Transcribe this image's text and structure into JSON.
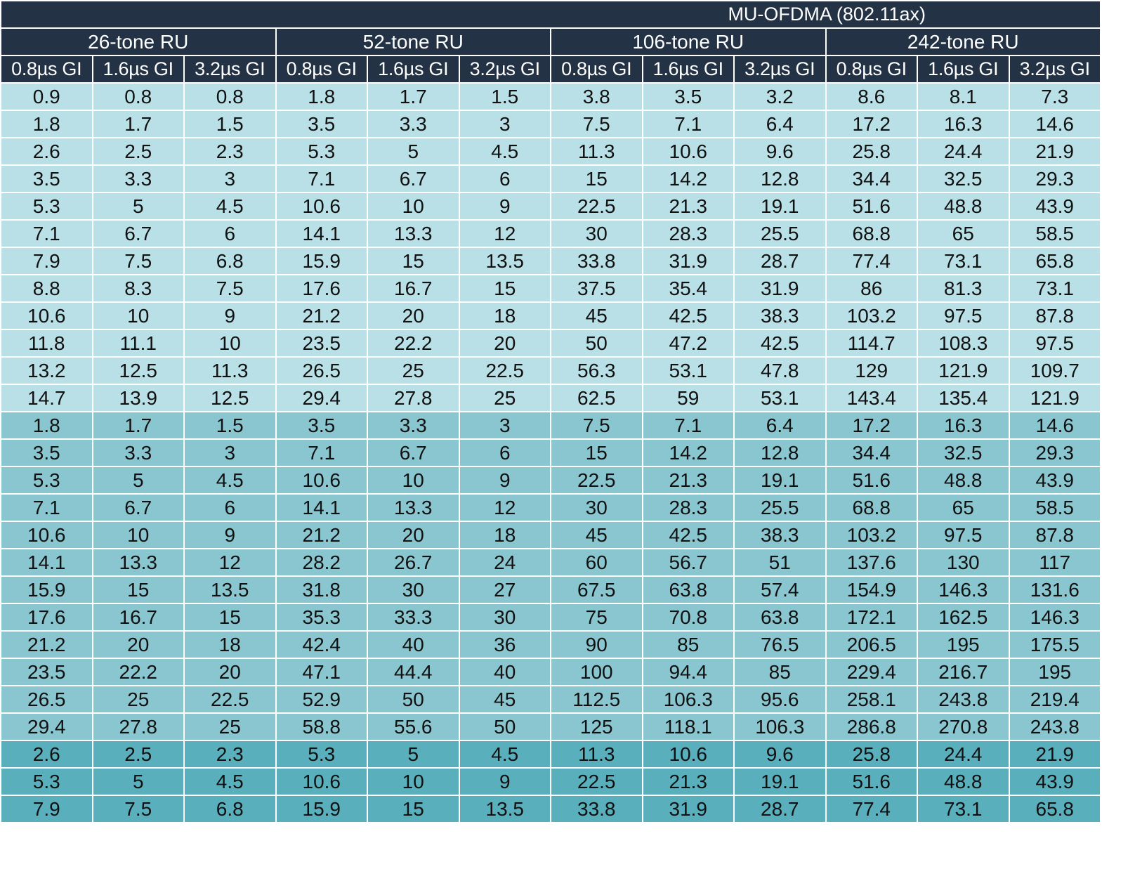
{
  "table": {
    "title": "MU-OFDMA (802.11ax)",
    "ru_headers": [
      "26-tone RU",
      "52-tone RU",
      "106-tone RU",
      "242-tone RU"
    ],
    "gi_headers": [
      "0.8µs GI",
      "1.6µs GI",
      "3.2µs GI"
    ],
    "band_colors": {
      "header": "#243246",
      "band_1": "#b8e0e6",
      "band_2": "#89c6cf",
      "band_3": "#5aafbd"
    },
    "rows": [
      {
        "band": 1,
        "cells": [
          "0.9",
          "0.8",
          "0.8",
          "1.8",
          "1.7",
          "1.5",
          "3.8",
          "3.5",
          "3.2",
          "8.6",
          "8.1",
          "7.3"
        ]
      },
      {
        "band": 1,
        "cells": [
          "1.8",
          "1.7",
          "1.5",
          "3.5",
          "3.3",
          "3",
          "7.5",
          "7.1",
          "6.4",
          "17.2",
          "16.3",
          "14.6"
        ]
      },
      {
        "band": 1,
        "cells": [
          "2.6",
          "2.5",
          "2.3",
          "5.3",
          "5",
          "4.5",
          "11.3",
          "10.6",
          "9.6",
          "25.8",
          "24.4",
          "21.9"
        ]
      },
      {
        "band": 1,
        "cells": [
          "3.5",
          "3.3",
          "3",
          "7.1",
          "6.7",
          "6",
          "15",
          "14.2",
          "12.8",
          "34.4",
          "32.5",
          "29.3"
        ]
      },
      {
        "band": 1,
        "cells": [
          "5.3",
          "5",
          "4.5",
          "10.6",
          "10",
          "9",
          "22.5",
          "21.3",
          "19.1",
          "51.6",
          "48.8",
          "43.9"
        ]
      },
      {
        "band": 1,
        "cells": [
          "7.1",
          "6.7",
          "6",
          "14.1",
          "13.3",
          "12",
          "30",
          "28.3",
          "25.5",
          "68.8",
          "65",
          "58.5"
        ]
      },
      {
        "band": 1,
        "cells": [
          "7.9",
          "7.5",
          "6.8",
          "15.9",
          "15",
          "13.5",
          "33.8",
          "31.9",
          "28.7",
          "77.4",
          "73.1",
          "65.8"
        ]
      },
      {
        "band": 1,
        "cells": [
          "8.8",
          "8.3",
          "7.5",
          "17.6",
          "16.7",
          "15",
          "37.5",
          "35.4",
          "31.9",
          "86",
          "81.3",
          "73.1"
        ]
      },
      {
        "band": 1,
        "cells": [
          "10.6",
          "10",
          "9",
          "21.2",
          "20",
          "18",
          "45",
          "42.5",
          "38.3",
          "103.2",
          "97.5",
          "87.8"
        ]
      },
      {
        "band": 1,
        "cells": [
          "11.8",
          "11.1",
          "10",
          "23.5",
          "22.2",
          "20",
          "50",
          "47.2",
          "42.5",
          "114.7",
          "108.3",
          "97.5"
        ]
      },
      {
        "band": 1,
        "cells": [
          "13.2",
          "12.5",
          "11.3",
          "26.5",
          "25",
          "22.5",
          "56.3",
          "53.1",
          "47.8",
          "129",
          "121.9",
          "109.7"
        ]
      },
      {
        "band": 1,
        "cells": [
          "14.7",
          "13.9",
          "12.5",
          "29.4",
          "27.8",
          "25",
          "62.5",
          "59",
          "53.1",
          "143.4",
          "135.4",
          "121.9"
        ]
      },
      {
        "band": 2,
        "cells": [
          "1.8",
          "1.7",
          "1.5",
          "3.5",
          "3.3",
          "3",
          "7.5",
          "7.1",
          "6.4",
          "17.2",
          "16.3",
          "14.6"
        ]
      },
      {
        "band": 2,
        "cells": [
          "3.5",
          "3.3",
          "3",
          "7.1",
          "6.7",
          "6",
          "15",
          "14.2",
          "12.8",
          "34.4",
          "32.5",
          "29.3"
        ]
      },
      {
        "band": 2,
        "cells": [
          "5.3",
          "5",
          "4.5",
          "10.6",
          "10",
          "9",
          "22.5",
          "21.3",
          "19.1",
          "51.6",
          "48.8",
          "43.9"
        ]
      },
      {
        "band": 2,
        "cells": [
          "7.1",
          "6.7",
          "6",
          "14.1",
          "13.3",
          "12",
          "30",
          "28.3",
          "25.5",
          "68.8",
          "65",
          "58.5"
        ]
      },
      {
        "band": 2,
        "cells": [
          "10.6",
          "10",
          "9",
          "21.2",
          "20",
          "18",
          "45",
          "42.5",
          "38.3",
          "103.2",
          "97.5",
          "87.8"
        ]
      },
      {
        "band": 2,
        "cells": [
          "14.1",
          "13.3",
          "12",
          "28.2",
          "26.7",
          "24",
          "60",
          "56.7",
          "51",
          "137.6",
          "130",
          "117"
        ]
      },
      {
        "band": 2,
        "cells": [
          "15.9",
          "15",
          "13.5",
          "31.8",
          "30",
          "27",
          "67.5",
          "63.8",
          "57.4",
          "154.9",
          "146.3",
          "131.6"
        ]
      },
      {
        "band": 2,
        "cells": [
          "17.6",
          "16.7",
          "15",
          "35.3",
          "33.3",
          "30",
          "75",
          "70.8",
          "63.8",
          "172.1",
          "162.5",
          "146.3"
        ]
      },
      {
        "band": 2,
        "cells": [
          "21.2",
          "20",
          "18",
          "42.4",
          "40",
          "36",
          "90",
          "85",
          "76.5",
          "206.5",
          "195",
          "175.5"
        ]
      },
      {
        "band": 2,
        "cells": [
          "23.5",
          "22.2",
          "20",
          "47.1",
          "44.4",
          "40",
          "100",
          "94.4",
          "85",
          "229.4",
          "216.7",
          "195"
        ]
      },
      {
        "band": 2,
        "cells": [
          "26.5",
          "25",
          "22.5",
          "52.9",
          "50",
          "45",
          "112.5",
          "106.3",
          "95.6",
          "258.1",
          "243.8",
          "219.4"
        ]
      },
      {
        "band": 2,
        "cells": [
          "29.4",
          "27.8",
          "25",
          "58.8",
          "55.6",
          "50",
          "125",
          "118.1",
          "106.3",
          "286.8",
          "270.8",
          "243.8"
        ]
      },
      {
        "band": 3,
        "cells": [
          "2.6",
          "2.5",
          "2.3",
          "5.3",
          "5",
          "4.5",
          "11.3",
          "10.6",
          "9.6",
          "25.8",
          "24.4",
          "21.9"
        ]
      },
      {
        "band": 3,
        "cells": [
          "5.3",
          "5",
          "4.5",
          "10.6",
          "10",
          "9",
          "22.5",
          "21.3",
          "19.1",
          "51.6",
          "48.8",
          "43.9"
        ]
      },
      {
        "band": 3,
        "cells": [
          "7.9",
          "7.5",
          "6.8",
          "15.9",
          "15",
          "13.5",
          "33.8",
          "31.9",
          "28.7",
          "77.4",
          "73.1",
          "65.8"
        ]
      }
    ]
  }
}
